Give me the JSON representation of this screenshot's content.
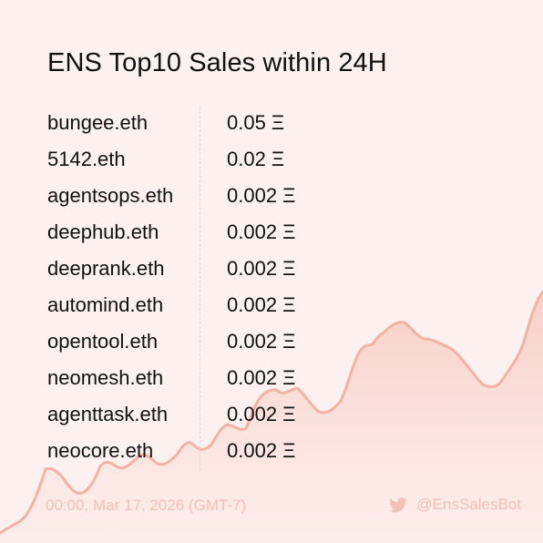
{
  "title": "ENS Top10 Sales within 24H",
  "sales": [
    {
      "name": "bungee.eth",
      "price": "0.05 Ξ"
    },
    {
      "name": "5142.eth",
      "price": "0.02 Ξ"
    },
    {
      "name": "agentsops.eth",
      "price": "0.002 Ξ"
    },
    {
      "name": "deephub.eth",
      "price": "0.002 Ξ"
    },
    {
      "name": "deeprank.eth",
      "price": "0.002 Ξ"
    },
    {
      "name": "automind.eth",
      "price": "0.002 Ξ"
    },
    {
      "name": "opentool.eth",
      "price": "0.002 Ξ"
    },
    {
      "name": "neomesh.eth",
      "price": "0.002 Ξ"
    },
    {
      "name": "agenttask.eth",
      "price": "0.002 Ξ"
    },
    {
      "name": "neocore.eth",
      "price": "0.002 Ξ"
    }
  ],
  "footer": {
    "timestamp": "00:00, Mar 17, 2026 (GMT-7)",
    "handle": "@EnsSalesBot",
    "handle_icon": "twitter-icon"
  },
  "colors": {
    "background": "#fdf1ef",
    "accent": "#f4b2a4",
    "footer_text": "#f4c1b6"
  }
}
